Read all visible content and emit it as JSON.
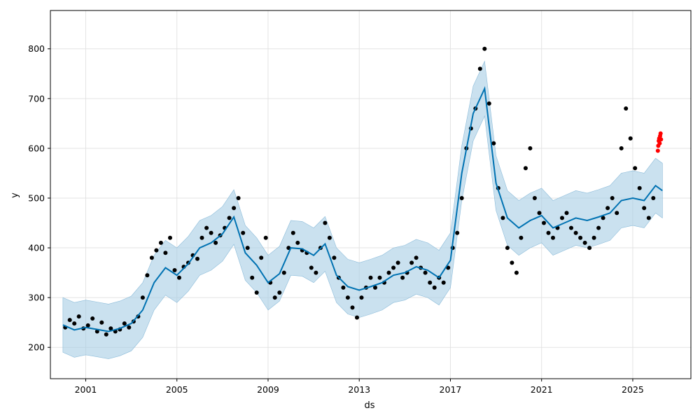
{
  "chart_data": {
    "type": "scatter",
    "xlabel": "ds",
    "ylabel": "y",
    "xlim": [
      1999.45,
      2027.55
    ],
    "ylim": [
      137,
      877
    ],
    "grid": true,
    "x_ticks": [
      2001,
      2005,
      2009,
      2013,
      2017,
      2021,
      2025
    ],
    "y_ticks": [
      200,
      300,
      400,
      500,
      600,
      700,
      800
    ],
    "colors": {
      "observed": "#000000",
      "forecast": "#0072b2",
      "interval": "#a6cde4",
      "highlight": "#ff0000"
    },
    "series": [
      {
        "kind": "observed-points",
        "x": [
          2000.1,
          2000.3,
          2000.5,
          2000.7,
          2000.9,
          2001.1,
          2001.3,
          2001.5,
          2001.7,
          2001.9,
          2002.1,
          2002.3,
          2002.5,
          2002.7,
          2002.9,
          2003.1,
          2003.3,
          2003.5,
          2003.7,
          2003.9,
          2004.1,
          2004.3,
          2004.5,
          2004.7,
          2004.9,
          2005.1,
          2005.3,
          2005.5,
          2005.7,
          2005.9,
          2006.1,
          2006.3,
          2006.5,
          2006.7,
          2006.9,
          2007.1,
          2007.3,
          2007.5,
          2007.7,
          2007.9,
          2008.1,
          2008.3,
          2008.5,
          2008.7,
          2008.9,
          2009.1,
          2009.3,
          2009.5,
          2009.7,
          2009.9,
          2010.1,
          2010.3,
          2010.5,
          2010.7,
          2010.9,
          2011.1,
          2011.3,
          2011.5,
          2011.7,
          2011.9,
          2012.1,
          2012.3,
          2012.5,
          2012.7,
          2012.9,
          2013.1,
          2013.3,
          2013.5,
          2013.7,
          2013.9,
          2014.1,
          2014.3,
          2014.5,
          2014.7,
          2014.9,
          2015.1,
          2015.3,
          2015.5,
          2015.7,
          2015.9,
          2016.1,
          2016.3,
          2016.5,
          2016.7,
          2016.9,
          2017.1,
          2017.3,
          2017.5,
          2017.7,
          2017.9,
          2018.1,
          2018.3,
          2018.5,
          2018.7,
          2018.9,
          2019.1,
          2019.3,
          2019.5,
          2019.7,
          2019.9,
          2020.1,
          2020.3,
          2020.5,
          2020.7,
          2020.9,
          2021.1,
          2021.3,
          2021.5,
          2021.7,
          2021.9,
          2022.1,
          2022.3,
          2022.5,
          2022.7,
          2022.9,
          2023.1,
          2023.3,
          2023.5,
          2023.7,
          2023.9,
          2024.1,
          2024.3,
          2024.5,
          2024.7,
          2024.9,
          2025.1,
          2025.3,
          2025.5,
          2025.7,
          2025.9
        ],
        "y": [
          240,
          255,
          248,
          262,
          238,
          244,
          258,
          232,
          250,
          226,
          238,
          232,
          236,
          248,
          240,
          252,
          262,
          300,
          345,
          380,
          395,
          410,
          390,
          420,
          355,
          340,
          362,
          370,
          385,
          378,
          420,
          440,
          430,
          410,
          425,
          440,
          460,
          480,
          500,
          430,
          400,
          340,
          310,
          380,
          420,
          330,
          300,
          310,
          350,
          400,
          430,
          410,
          395,
          390,
          360,
          350,
          400,
          450,
          420,
          380,
          340,
          320,
          300,
          280,
          260,
          300,
          320,
          340,
          320,
          340,
          330,
          350,
          360,
          370,
          340,
          350,
          370,
          380,
          360,
          350,
          330,
          320,
          340,
          330,
          360,
          400,
          430,
          500,
          600,
          640,
          680,
          760,
          800,
          690,
          610,
          520,
          460,
          400,
          370,
          350,
          420,
          560,
          600,
          500,
          470,
          450,
          430,
          420,
          440,
          460,
          470,
          440,
          430,
          420,
          410,
          400,
          420,
          440,
          460,
          480,
          500,
          470,
          600,
          680,
          620,
          560,
          520,
          480,
          460,
          500
        ]
      },
      {
        "kind": "forecast-line",
        "x": [
          2000.0,
          2000.5,
          2001.0,
          2001.5,
          2002.0,
          2002.5,
          2003.0,
          2003.5,
          2004.0,
          2004.5,
          2005.0,
          2005.5,
          2006.0,
          2006.5,
          2007.0,
          2007.5,
          2008.0,
          2008.5,
          2009.0,
          2009.5,
          2010.0,
          2010.5,
          2011.0,
          2011.5,
          2012.0,
          2012.5,
          2013.0,
          2013.5,
          2014.0,
          2014.5,
          2015.0,
          2015.5,
          2016.0,
          2016.5,
          2017.0,
          2017.5,
          2018.0,
          2018.5,
          2019.0,
          2019.5,
          2020.0,
          2020.5,
          2021.0,
          2021.5,
          2022.0,
          2022.5,
          2023.0,
          2023.5,
          2024.0,
          2024.5,
          2025.0,
          2025.5,
          2026.0,
          2026.3
        ],
        "y": [
          245,
          235,
          240,
          236,
          232,
          238,
          248,
          275,
          330,
          360,
          345,
          368,
          400,
          410,
          428,
          462,
          390,
          365,
          330,
          348,
          400,
          398,
          385,
          408,
          345,
          322,
          315,
          322,
          330,
          345,
          350,
          362,
          355,
          340,
          375,
          550,
          670,
          720,
          530,
          460,
          440,
          455,
          465,
          440,
          450,
          460,
          455,
          462,
          470,
          495,
          500,
          495,
          525,
          515
        ]
      },
      {
        "kind": "uncertainty-band",
        "x": [
          2000.0,
          2000.5,
          2001.0,
          2001.5,
          2002.0,
          2002.5,
          2003.0,
          2003.5,
          2004.0,
          2004.5,
          2005.0,
          2005.5,
          2006.0,
          2006.5,
          2007.0,
          2007.5,
          2008.0,
          2008.5,
          2009.0,
          2009.5,
          2010.0,
          2010.5,
          2011.0,
          2011.5,
          2012.0,
          2012.5,
          2013.0,
          2013.5,
          2014.0,
          2014.5,
          2015.0,
          2015.5,
          2016.0,
          2016.5,
          2017.0,
          2017.5,
          2018.0,
          2018.5,
          2019.0,
          2019.5,
          2020.0,
          2020.5,
          2021.0,
          2021.5,
          2022.0,
          2022.5,
          2023.0,
          2023.5,
          2024.0,
          2024.5,
          2025.0,
          2025.5,
          2026.0,
          2026.3
        ],
        "upper": [
          300,
          290,
          295,
          291,
          287,
          293,
          303,
          330,
          385,
          415,
          400,
          423,
          455,
          465,
          483,
          517,
          445,
          420,
          385,
          403,
          455,
          453,
          440,
          463,
          400,
          377,
          370,
          377,
          385,
          400,
          405,
          417,
          410,
          395,
          430,
          605,
          725,
          775,
          585,
          515,
          495,
          510,
          520,
          495,
          505,
          515,
          510,
          517,
          525,
          550,
          555,
          550,
          580,
          570
        ],
        "lower": [
          190,
          180,
          185,
          181,
          177,
          183,
          193,
          220,
          275,
          305,
          290,
          313,
          345,
          355,
          373,
          407,
          335,
          310,
          275,
          293,
          345,
          343,
          330,
          353,
          290,
          267,
          260,
          267,
          275,
          290,
          295,
          307,
          300,
          285,
          320,
          495,
          615,
          665,
          475,
          405,
          385,
          400,
          410,
          385,
          395,
          405,
          400,
          407,
          415,
          440,
          445,
          440,
          470,
          460
        ]
      },
      {
        "kind": "highlighted-points",
        "x": [
          2026.1,
          2026.12,
          2026.14,
          2026.16,
          2026.18,
          2026.2,
          2026.22,
          2026.24
        ],
        "y": [
          595,
          605,
          615,
          620,
          610,
          625,
          630,
          618
        ]
      }
    ]
  }
}
